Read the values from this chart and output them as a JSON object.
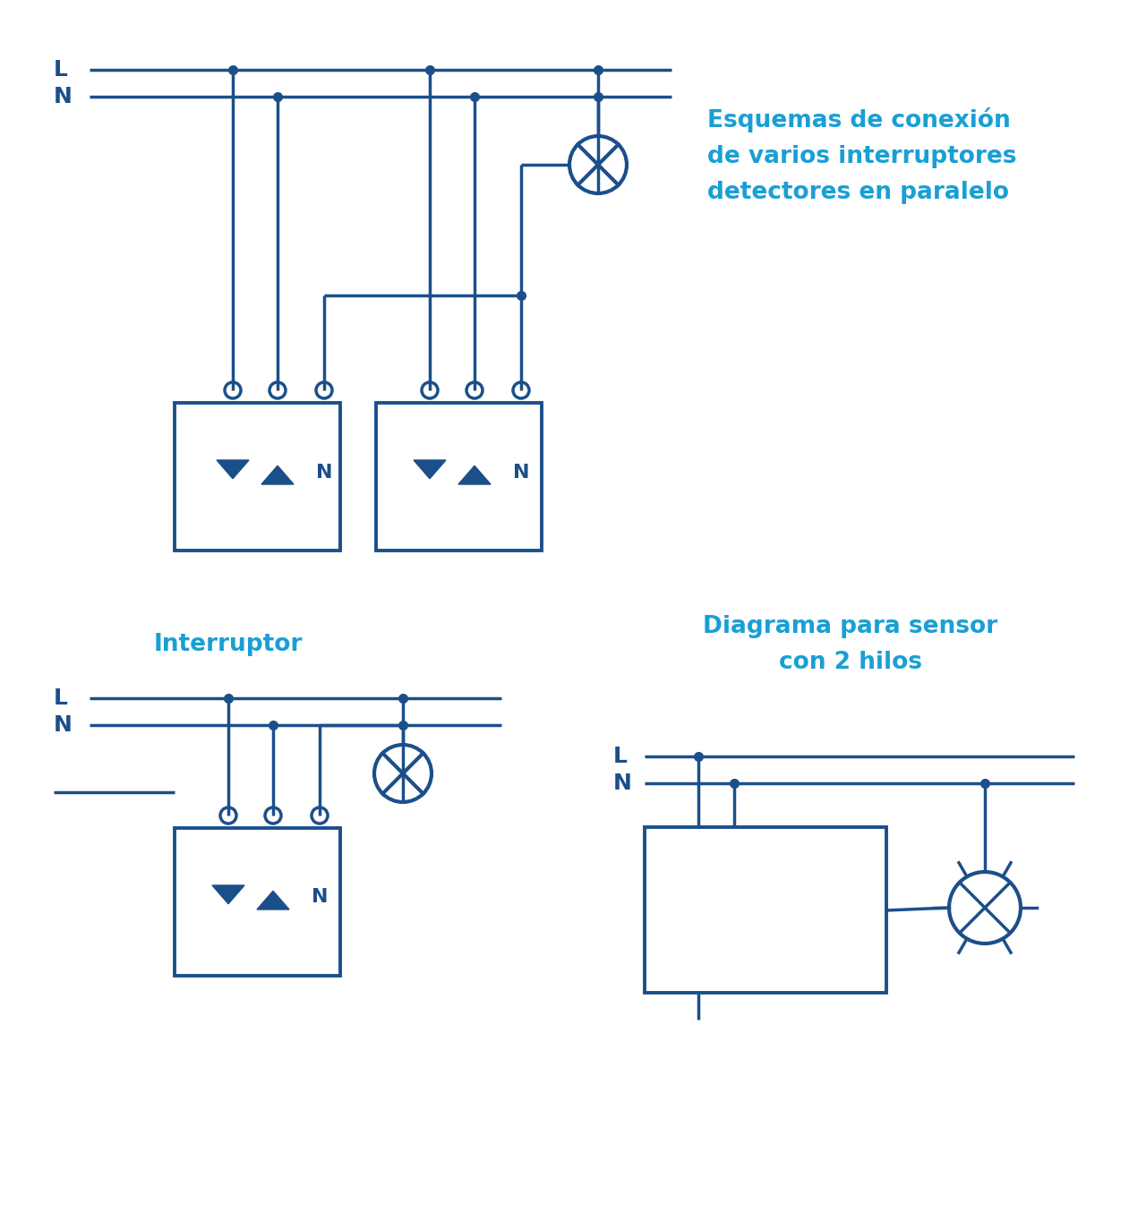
{
  "color": "#1b4f8a",
  "color_cyan": "#1a9fd4",
  "bg_color": "#ffffff",
  "lw": 2.5,
  "dot_size": 7,
  "title1": "Esquemas de conexión\nde varios interruptores\ndetectores en paralelo",
  "title2": "Interruptor",
  "title3": "Diagrama para sensor\ncon 2 hilos",
  "label_L": "L",
  "label_N": "N"
}
